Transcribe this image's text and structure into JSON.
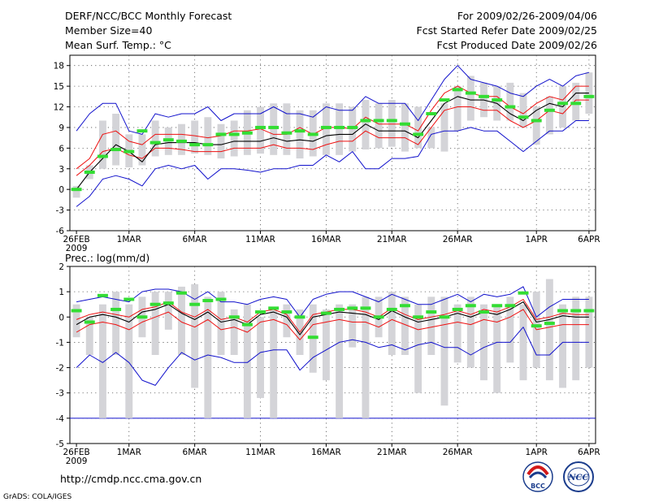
{
  "header": {
    "title": "DERF/NCC/BCC Monthly Forecast",
    "member_size": "Member Size=40",
    "variable": "Mean Surf. Temp.: °C",
    "period": "For 2009/02/26-2009/04/06",
    "start_date": "Fcst Started Refer Date 2009/02/25",
    "produced_date": "Fcst Produced Date 2009/02/26"
  },
  "footer": {
    "url": "http://cmdp.ncc.cma.gov.cn",
    "credit": "GrADS: COLA/IGES",
    "logo_bcc": "BCC",
    "logo_ncc": "NCC"
  },
  "colors": {
    "box": "#d4d4d8",
    "mean": "#33dd33",
    "median": "#000000",
    "inner": "#ee1111",
    "outer": "#1111cc",
    "axis": "#000000"
  },
  "chart_data": [
    {
      "type": "box",
      "title": "Mean Surf. Temp.: °C",
      "xticks": [
        "26FEB\n2009",
        "1MAR",
        "6MAR",
        "11MAR",
        "16MAR",
        "21MAR",
        "26MAR",
        "1APR",
        "6APR"
      ],
      "yticks": [
        "-6",
        "-3",
        "0",
        "3",
        "6",
        "9",
        "12",
        "15",
        "18"
      ],
      "ylim": [
        -6,
        19.5
      ],
      "grid": true,
      "days": 40,
      "box_low": [
        -1.2,
        1.5,
        3.0,
        3.5,
        3.2,
        3.5,
        4.8,
        5.0,
        5.0,
        5.2,
        5.0,
        4.5,
        4.8,
        5.0,
        5.2,
        5.0,
        5.0,
        4.5,
        4.8,
        5.0,
        5.0,
        5.5,
        5.8,
        6.0,
        6.2,
        5.5,
        6.0,
        6.0,
        5.5,
        8.5,
        10.0,
        10.5,
        10.0,
        10.0,
        9.0,
        6.5,
        8.0,
        9.0,
        10.0,
        11.0
      ],
      "box_high": [
        0.5,
        3.5,
        10.0,
        11.0,
        8.0,
        8.0,
        10.0,
        9.0,
        9.5,
        10.0,
        10.5,
        9.5,
        10.0,
        11.5,
        12.0,
        12.5,
        12.5,
        11.5,
        11.5,
        12.5,
        12.5,
        12.0,
        13.0,
        12.5,
        13.0,
        12.5,
        12.0,
        9.0,
        12.5,
        15.0,
        16.5,
        15.5,
        15.0,
        15.5,
        14.0,
        12.0,
        13.5,
        15.0,
        15.5,
        17.0
      ],
      "mean": [
        0.0,
        2.5,
        4.8,
        5.8,
        5.5,
        8.5,
        6.8,
        7.2,
        7.0,
        6.5,
        6.5,
        8.0,
        8.0,
        8.2,
        9.0,
        9.0,
        8.2,
        8.5,
        8.0,
        9.0,
        9.0,
        9.0,
        10.0,
        10.0,
        10.0,
        9.5,
        8.0,
        11.0,
        13.0,
        14.5,
        14.0,
        13.5,
        13.0,
        12.0,
        10.5,
        10.0,
        11.5,
        12.5,
        12.5,
        13.5
      ],
      "median": [
        0.0,
        2.5,
        4.5,
        6.5,
        5.5,
        4.0,
        6.5,
        6.8,
        6.8,
        6.8,
        6.5,
        6.5,
        7.0,
        7.0,
        7.0,
        7.5,
        7.0,
        7.2,
        7.0,
        7.8,
        8.0,
        8.0,
        9.5,
        8.5,
        8.5,
        8.5,
        7.5,
        10.0,
        12.5,
        13.5,
        13.0,
        13.0,
        12.5,
        11.0,
        10.0,
        11.5,
        12.5,
        12.0,
        14.0,
        14.0
      ],
      "inner_upper": [
        3.0,
        4.5,
        8.0,
        8.5,
        7.0,
        6.5,
        8.0,
        8.0,
        8.0,
        7.8,
        7.5,
        7.8,
        8.5,
        8.5,
        8.8,
        8.0,
        8.0,
        9.0,
        8.0,
        9.0,
        9.0,
        8.8,
        10.5,
        9.5,
        9.5,
        9.5,
        8.5,
        11.5,
        14.0,
        15.0,
        14.0,
        13.5,
        13.5,
        12.0,
        11.0,
        12.5,
        13.5,
        13.0,
        15.0,
        15.0
      ],
      "inner_lower": [
        2.0,
        3.5,
        5.5,
        6.0,
        5.0,
        4.5,
        6.0,
        6.0,
        5.8,
        5.5,
        5.5,
        5.5,
        6.0,
        6.0,
        6.0,
        6.5,
        6.0,
        6.0,
        5.8,
        6.5,
        7.0,
        7.0,
        8.5,
        7.5,
        7.5,
        7.5,
        6.5,
        9.0,
        11.5,
        12.0,
        12.0,
        11.5,
        11.5,
        10.0,
        9.0,
        10.0,
        11.5,
        11.0,
        13.0,
        13.0
      ],
      "outer_upper": [
        8.5,
        11.0,
        12.5,
        12.5,
        8.5,
        8.0,
        11.0,
        10.5,
        11.0,
        11.0,
        12.0,
        10.0,
        11.0,
        11.0,
        11.0,
        12.0,
        11.0,
        11.0,
        10.5,
        12.0,
        11.5,
        11.5,
        13.5,
        12.5,
        12.5,
        12.5,
        10.0,
        13.0,
        16.0,
        18.0,
        16.0,
        15.5,
        15.0,
        14.0,
        13.5,
        15.0,
        16.0,
        15.0,
        16.5,
        17.0
      ],
      "outer_lower": [
        -2.5,
        -1.0,
        1.5,
        2.0,
        1.5,
        0.5,
        3.0,
        3.5,
        3.0,
        3.5,
        1.5,
        3.0,
        3.0,
        2.8,
        2.5,
        3.0,
        3.0,
        3.5,
        3.5,
        5.0,
        4.0,
        5.5,
        3.0,
        3.0,
        4.5,
        4.5,
        4.8,
        8.0,
        8.5,
        8.5,
        9.0,
        8.5,
        8.5,
        7.0,
        5.5,
        7.0,
        8.5,
        8.5,
        10.0,
        10.0
      ]
    },
    {
      "type": "box",
      "title": "Prec.: log(mm/d)",
      "xticks": [
        "26FEB\n2009",
        "1MAR",
        "6MAR",
        "11MAR",
        "16MAR",
        "21MAR",
        "26MAR",
        "1APR",
        "6APR"
      ],
      "yticks": [
        "-5",
        "-4",
        "-3",
        "-2",
        "-1",
        "0",
        "1",
        "2"
      ],
      "ylim": [
        -5,
        2
      ],
      "grid": true,
      "days": 40,
      "box_low": [
        -0.8,
        -1.5,
        -4.0,
        -1.5,
        -4.0,
        -0.8,
        -1.5,
        -0.5,
        -1.5,
        -2.8,
        -4.0,
        -1.5,
        -1.5,
        -4.0,
        -3.2,
        -4.0,
        -0.8,
        -1.5,
        -2.2,
        -2.5,
        -4.0,
        -1.2,
        -4.0,
        -0.8,
        -1.5,
        -1.5,
        -3.0,
        -1.5,
        -3.5,
        -1.8,
        -2.0,
        -2.5,
        -3.0,
        -1.8,
        -2.5,
        -2.0,
        -2.5,
        -2.8,
        -2.5,
        -2.0
      ],
      "box_high": [
        0.5,
        0.0,
        0.5,
        1.0,
        0.5,
        0.8,
        1.0,
        1.0,
        1.2,
        1.3,
        0.8,
        1.0,
        0.3,
        0.5,
        0.0,
        0.3,
        0.5,
        0.3,
        0.5,
        0.3,
        0.5,
        0.5,
        0.8,
        0.8,
        1.0,
        0.8,
        0.5,
        0.8,
        0.8,
        0.5,
        0.8,
        0.5,
        0.5,
        0.8,
        0.5,
        1.0,
        1.5,
        0.5,
        0.8,
        0.8
      ],
      "mean": [
        0.25,
        -0.2,
        0.85,
        0.3,
        0.7,
        0.0,
        0.5,
        0.55,
        0.95,
        0.5,
        0.65,
        0.7,
        0.0,
        -0.3,
        0.2,
        0.35,
        0.2,
        0.0,
        -0.8,
        0.15,
        0.3,
        0.35,
        0.35,
        0.0,
        0.3,
        0.45,
        0.0,
        0.2,
        0.0,
        0.3,
        0.45,
        0.2,
        0.45,
        0.45,
        0.95,
        -0.35,
        -0.25,
        0.25,
        0.25,
        0.25
      ],
      "median": [
        -0.3,
        0.0,
        0.1,
        0.0,
        -0.2,
        0.2,
        0.3,
        0.5,
        0.15,
        -0.1,
        0.2,
        -0.2,
        -0.1,
        -0.3,
        0.1,
        0.2,
        0.0,
        -0.7,
        0.0,
        0.1,
        0.2,
        0.15,
        0.1,
        -0.1,
        0.25,
        0.0,
        -0.2,
        -0.1,
        0.0,
        0.15,
        0.0,
        0.2,
        0.1,
        0.3,
        0.6,
        -0.2,
        -0.1,
        0.05,
        0.0,
        0.0
      ],
      "inner_upper": [
        -0.1,
        0.1,
        0.2,
        0.1,
        0.0,
        0.3,
        0.4,
        0.6,
        0.2,
        0.0,
        0.3,
        -0.1,
        0.0,
        -0.2,
        0.2,
        0.3,
        0.1,
        -0.6,
        0.1,
        0.2,
        0.3,
        0.3,
        0.2,
        0.0,
        0.35,
        0.1,
        -0.1,
        0.0,
        0.1,
        0.25,
        0.1,
        0.3,
        0.2,
        0.4,
        0.7,
        -0.1,
        0.0,
        0.15,
        0.1,
        0.1
      ],
      "inner_lower": [
        -0.6,
        -0.3,
        -0.2,
        -0.3,
        -0.5,
        -0.2,
        0.0,
        0.2,
        -0.2,
        -0.4,
        -0.1,
        -0.5,
        -0.4,
        -0.6,
        -0.2,
        -0.1,
        -0.3,
        -0.9,
        -0.3,
        -0.2,
        -0.1,
        -0.2,
        -0.2,
        -0.4,
        -0.1,
        -0.3,
        -0.5,
        -0.4,
        -0.3,
        -0.2,
        -0.3,
        -0.1,
        -0.2,
        0.0,
        0.3,
        -0.5,
        -0.4,
        -0.3,
        -0.3,
        -0.3
      ],
      "outer_upper": [
        0.6,
        0.7,
        0.8,
        0.7,
        0.6,
        1.0,
        1.1,
        1.1,
        1.0,
        0.7,
        1.0,
        0.6,
        0.6,
        0.5,
        0.7,
        0.8,
        0.7,
        0.0,
        0.7,
        0.9,
        1.0,
        1.0,
        0.8,
        0.6,
        0.9,
        0.7,
        0.5,
        0.5,
        0.7,
        0.9,
        0.6,
        0.9,
        0.8,
        0.9,
        1.2,
        0.0,
        0.4,
        0.7,
        0.7,
        0.7
      ],
      "outer_lower": [
        -2.0,
        -1.5,
        -1.8,
        -1.4,
        -1.8,
        -2.5,
        -2.7,
        -2.0,
        -1.4,
        -1.7,
        -1.5,
        -1.6,
        -1.8,
        -1.8,
        -1.4,
        -1.3,
        -1.3,
        -2.1,
        -1.6,
        -1.3,
        -1.0,
        -0.9,
        -1.0,
        -1.2,
        -1.1,
        -1.3,
        -1.1,
        -1.0,
        -1.2,
        -1.2,
        -1.5,
        -1.2,
        -1.0,
        -1.0,
        -0.4,
        -1.5,
        -1.5,
        -1.0,
        -1.0,
        -1.0
      ],
      "floor_value": -4
    }
  ]
}
